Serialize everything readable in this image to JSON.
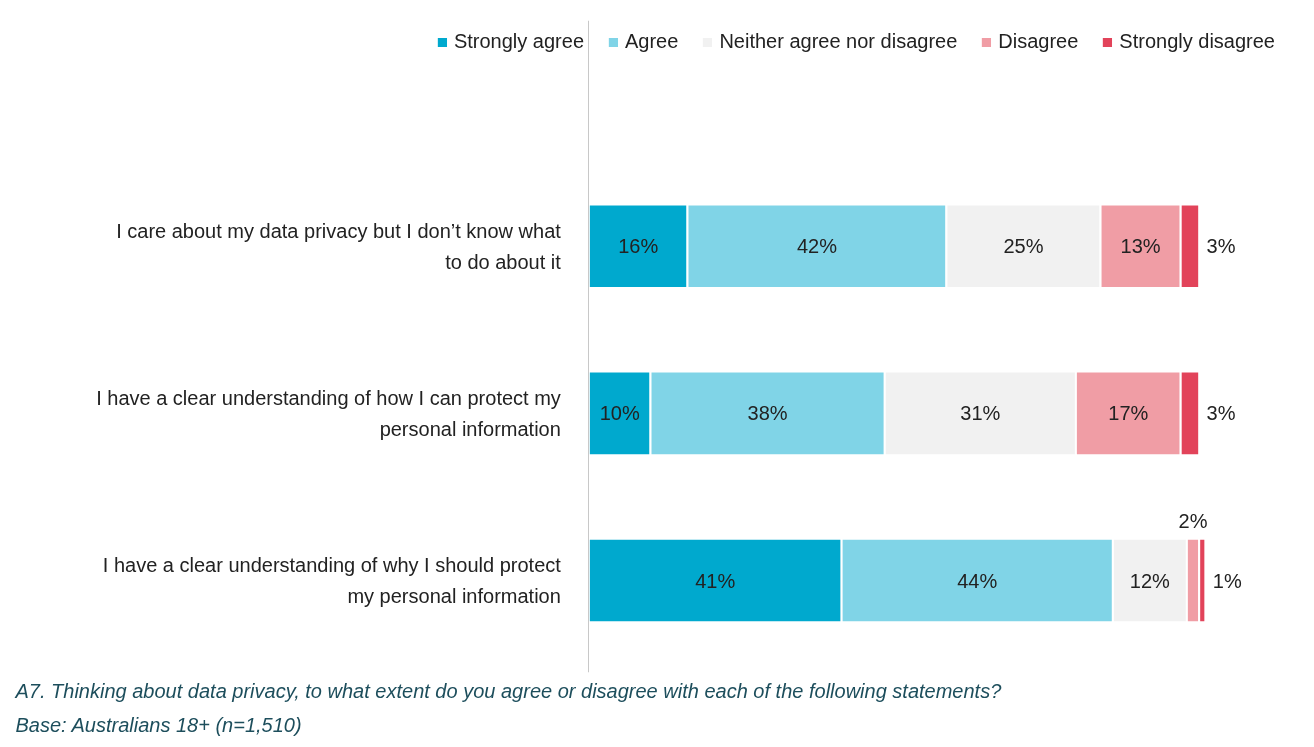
{
  "chart_data": {
    "type": "bar",
    "orientation": "horizontal",
    "stacked": true,
    "legend": "top",
    "grid": false,
    "tick_labels": "y",
    "categories": [
      "I care about my data privacy but I don’t know what to do about it",
      "I have a clear understanding of how I can protect my personal information",
      "I have a clear understanding of why I should protect my personal information"
    ],
    "series": [
      {
        "name": "Strongly agree",
        "color": "#00a9ce",
        "values": [
          16,
          10,
          41
        ],
        "value_labels": [
          "16%",
          "10%",
          "41%"
        ]
      },
      {
        "name": "Agree",
        "color": "#80d4e7",
        "values": [
          42,
          38,
          44
        ],
        "value_labels": [
          "42%",
          "38%",
          "44%"
        ]
      },
      {
        "name": "Neither agree nor disagree",
        "color": "#f1f1f1",
        "values": [
          25,
          31,
          12
        ],
        "value_labels": [
          "25%",
          "31%",
          "12%"
        ]
      },
      {
        "name": "Disagree",
        "color": "#f09da5",
        "values": [
          13,
          17,
          2
        ],
        "value_labels": [
          "13%",
          "17%",
          "2%"
        ]
      },
      {
        "name": "Strongly disagree",
        "color": "#e2435a",
        "values": [
          3,
          3,
          1
        ],
        "value_labels": [
          "3%",
          "3%",
          "1%"
        ]
      }
    ],
    "annotations": [
      "A7. Thinking about data privacy, to what extent do you agree or disagree with each of the following statements?  Base: Australians 18+ (n=1,510)"
    ]
  }
}
